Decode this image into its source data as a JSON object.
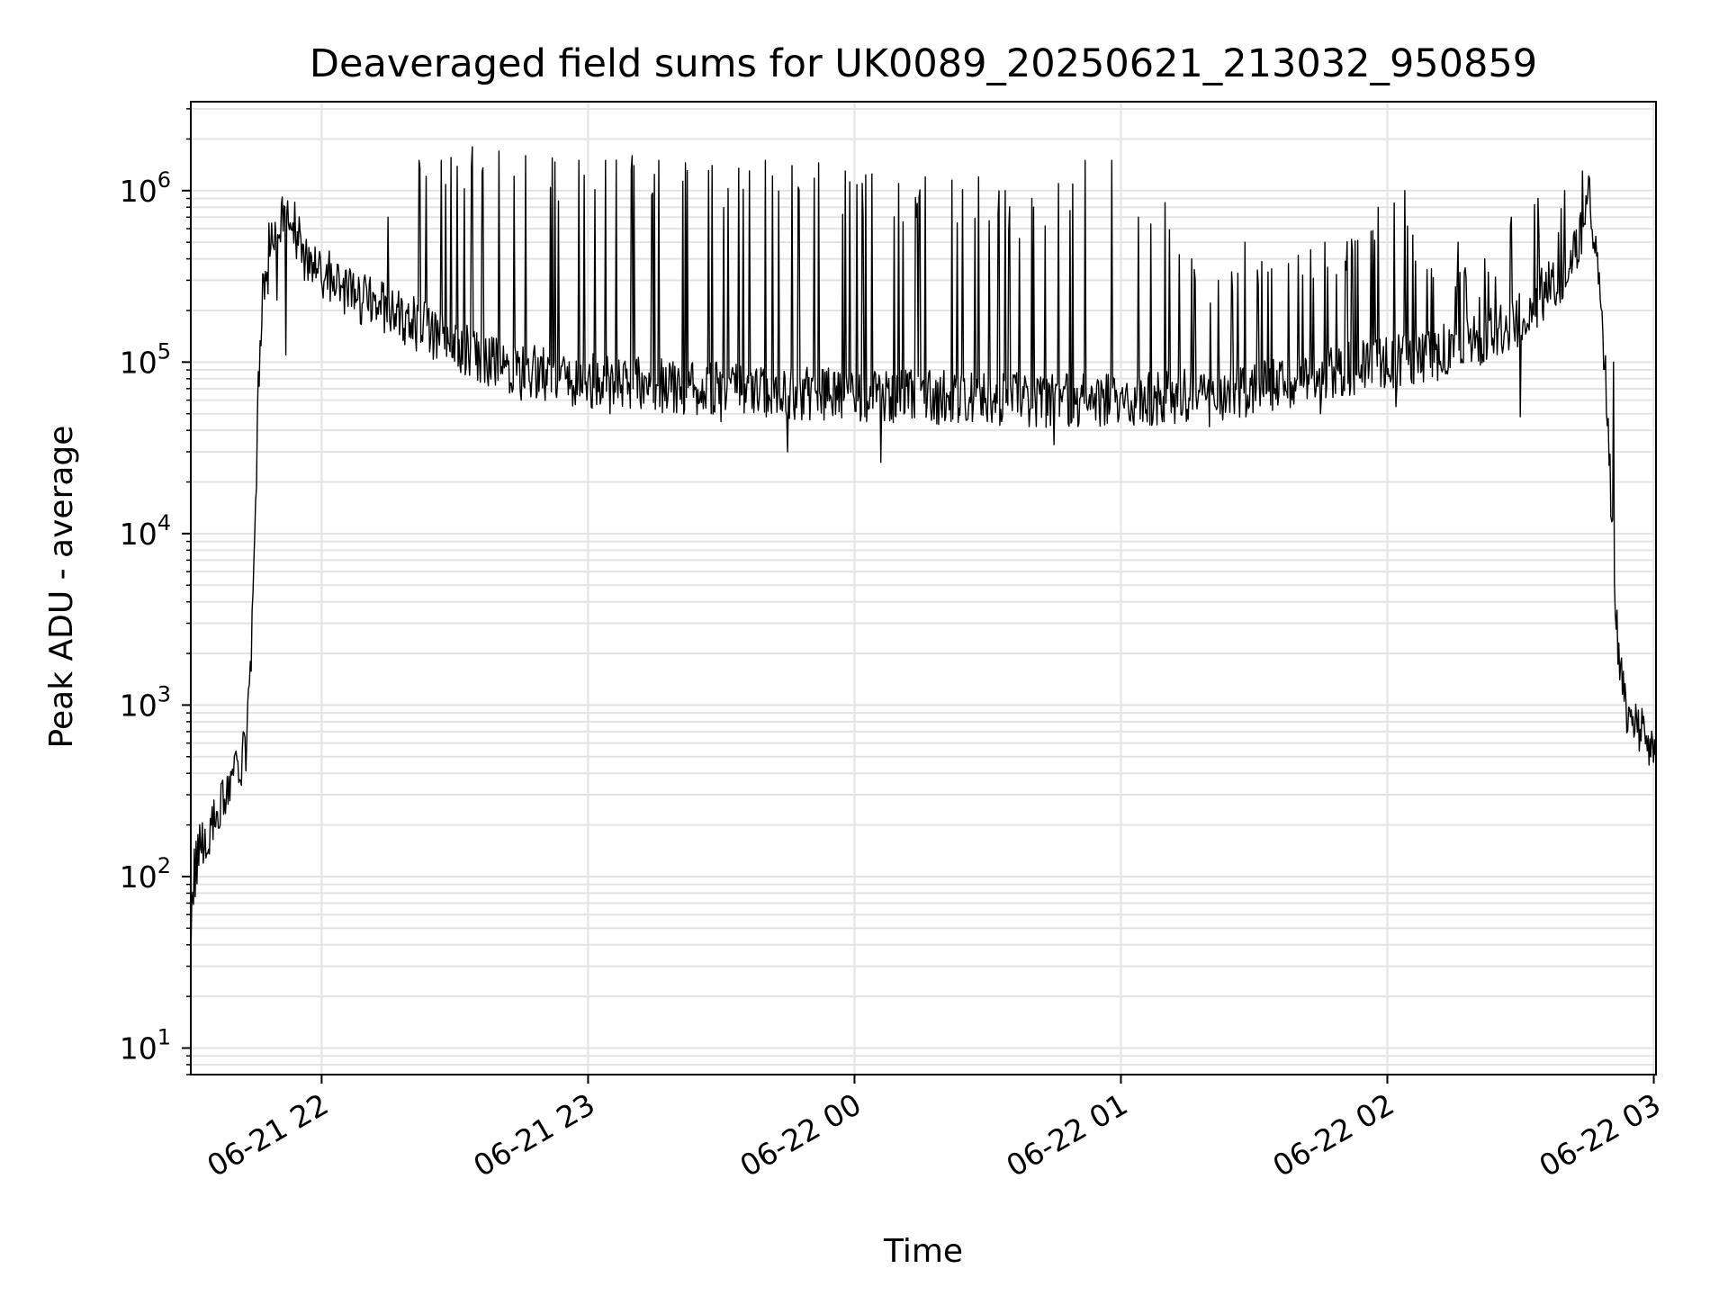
{
  "chart_data": {
    "type": "line",
    "title": "Deaveraged field sums for UK0089_20250621_213032_950859",
    "xlabel": "Time",
    "ylabel": "Peak ADU - average",
    "yscale": "log",
    "ylim": [
      7,
      3300000
    ],
    "xlim": [
      "2025-06-21 21:30:32",
      "2025-06-22 03:00:30"
    ],
    "grid": true,
    "line_color": "#000000",
    "x_ticks": [
      {
        "label": "06-21 22",
        "value": "2025-06-21 22:00:00"
      },
      {
        "label": "06-21 23",
        "value": "2025-06-21 23:00:00"
      },
      {
        "label": "06-22 00",
        "value": "2025-06-22 00:00:00"
      },
      {
        "label": "06-22 01",
        "value": "2025-06-22 01:00:00"
      },
      {
        "label": "06-22 02",
        "value": "2025-06-22 02:00:00"
      },
      {
        "label": "06-22 03",
        "value": "2025-06-22 03:00:00"
      }
    ],
    "y_ticks": [
      {
        "base": "10",
        "exp": "1",
        "value": 10
      },
      {
        "base": "10",
        "exp": "2",
        "value": 100
      },
      {
        "base": "10",
        "exp": "3",
        "value": 1000
      },
      {
        "base": "10",
        "exp": "4",
        "value": 10000
      },
      {
        "base": "10",
        "exp": "5",
        "value": 100000
      },
      {
        "base": "10",
        "exp": "6",
        "value": 1000000
      }
    ],
    "series": [
      {
        "x": [
          "2025-06-21 21:30:32",
          "2025-06-21 21:31:00",
          "2025-06-21 21:32:00",
          "2025-06-21 21:33:00",
          "2025-06-21 21:35:00",
          "2025-06-21 21:37:00",
          "2025-06-21 21:39:00",
          "2025-06-21 21:40:00",
          "2025-06-21 21:40:30",
          "2025-06-21 21:41:00",
          "2025-06-21 21:42:00",
          "2025-06-21 21:43:00",
          "2025-06-21 21:44:00",
          "2025-06-21 21:45:00",
          "2025-06-21 21:46:00",
          "2025-06-21 21:47:00",
          "2025-06-21 21:48:00",
          "2025-06-21 21:50:00",
          "2025-06-21 21:52:00",
          "2025-06-21 21:53:00",
          "2025-06-21 21:54:00",
          "2025-06-21 21:55:00",
          "2025-06-21 21:55:30",
          "2025-06-21 21:56:00",
          "2025-06-21 21:58:00",
          "2025-06-21 22:00:00",
          "2025-06-21 22:05:00",
          "2025-06-21 22:10:00",
          "2025-06-21 22:15:00",
          "2025-06-21 22:20:00",
          "2025-06-21 22:25:00",
          "2025-06-21 22:30:00",
          "2025-06-21 22:35:00",
          "2025-06-21 22:40:00",
          "2025-06-21 22:45:00",
          "2025-06-21 22:50:00",
          "2025-06-21 22:55:00",
          "2025-06-21 23:00:00",
          "2025-06-21 23:10:00",
          "2025-06-21 23:20:00",
          "2025-06-21 23:30:00",
          "2025-06-21 23:40:00",
          "2025-06-21 23:50:00",
          "2025-06-22 00:00:00",
          "2025-06-22 00:10:00",
          "2025-06-22 00:20:00",
          "2025-06-22 00:30:00",
          "2025-06-22 00:40:00",
          "2025-06-22 00:50:00",
          "2025-06-22 01:00:00",
          "2025-06-22 01:10:00",
          "2025-06-22 01:20:00",
          "2025-06-22 01:30:00",
          "2025-06-22 01:40:00",
          "2025-06-22 01:50:00",
          "2025-06-22 02:00:00",
          "2025-06-22 02:10:00",
          "2025-06-22 02:20:00",
          "2025-06-22 02:30:00",
          "2025-06-22 02:35:00",
          "2025-06-22 02:40:00",
          "2025-06-22 02:42:00",
          "2025-06-22 02:44:00",
          "2025-06-22 02:45:00",
          "2025-06-22 02:46:00",
          "2025-06-22 02:47:00",
          "2025-06-22 02:48:00",
          "2025-06-22 02:49:00",
          "2025-06-22 02:50:00",
          "2025-06-22 02:51:00",
          "2025-06-22 02:52:00",
          "2025-06-22 02:53:00",
          "2025-06-22 02:55:00",
          "2025-06-22 02:58:00",
          "2025-06-22 03:00:30"
        ],
        "y": [
          35,
          90,
          130,
          160,
          200,
          260,
          320,
          420,
          500,
          380,
          450,
          600,
          1500,
          12000,
          110000,
          300000,
          450000,
          600000,
          680000,
          700000,
          620000,
          500000,
          480000,
          420000,
          390000,
          330000,
          270000,
          230000,
          200000,
          170000,
          150000,
          130000,
          110000,
          100000,
          90000,
          85000,
          80000,
          78000,
          75000,
          72000,
          70000,
          68000,
          66000,
          64000,
          63000,
          62000,
          61000,
          60000,
          59000,
          60000,
          62000,
          65000,
          70000,
          80000,
          90000,
          100000,
          110000,
          130000,
          180000,
          250000,
          320000,
          420000,
          600000,
          900000,
          750000,
          500000,
          250000,
          90000,
          30000,
          6000,
          2000,
          1200,
          800,
          650,
          500
        ]
      },
      {
        "x": [
          "2025-06-21 21:50:00",
          "2025-06-21 21:59:00",
          "2025-06-21 22:15:00",
          "2025-06-21 22:22:00",
          "2025-06-21 22:27:00",
          "2025-06-21 22:34:00",
          "2025-06-21 22:40:00",
          "2025-06-21 22:46:00",
          "2025-06-21 22:52:00",
          "2025-06-21 22:58:00",
          "2025-06-21 23:04:00",
          "2025-06-21 23:10:00",
          "2025-06-21 23:16:00",
          "2025-06-21 23:22:00",
          "2025-06-21 23:28:00",
          "2025-06-21 23:34:00",
          "2025-06-21 23:40:00",
          "2025-06-21 23:46:00",
          "2025-06-21 23:52:00",
          "2025-06-21 23:58:00",
          "2025-06-22 00:04:00",
          "2025-06-22 00:10:00",
          "2025-06-22 00:16:00",
          "2025-06-22 00:22:00",
          "2025-06-22 00:28:00",
          "2025-06-22 00:34:00",
          "2025-06-22 00:40:00",
          "2025-06-22 00:46:00",
          "2025-06-22 00:52:00",
          "2025-06-22 00:58:00",
          "2025-06-22 01:04:00",
          "2025-06-22 01:10:00",
          "2025-06-22 01:16:00",
          "2025-06-22 01:22:00",
          "2025-06-22 01:28:00",
          "2025-06-22 01:34:00",
          "2025-06-22 01:40:00",
          "2025-06-22 01:46:00",
          "2025-06-22 01:52:00",
          "2025-06-22 01:58:00",
          "2025-06-22 02:04:00",
          "2025-06-22 02:10:00",
          "2025-06-22 02:16:00",
          "2025-06-22 02:22:00",
          "2025-06-22 02:28:00",
          "2025-06-22 02:34:00",
          "2025-06-22 02:40:00",
          "2025-06-22 02:44:00"
        ],
        "y": [
          230000,
          350000,
          700000,
          1500000,
          1500000,
          1800000,
          1700000,
          1600000,
          1550000,
          1500000,
          1500000,
          1600000,
          1500000,
          1450000,
          1400000,
          1350000,
          1500000,
          1400000,
          1450000,
          1300000,
          1250000,
          1100000,
          1200000,
          1150000,
          1200000,
          1000000,
          900000,
          1100000,
          1500000,
          1500000,
          700000,
          850000,
          400000,
          300000,
          500000,
          350000,
          420000,
          500000,
          520000,
          800000,
          1000000,
          350000,
          500000,
          400000,
          700000,
          900000,
          1000000,
          1300000
        ]
      },
      {
        "x": [
          "2025-06-21 21:48:00",
          "2025-06-21 21:52:00",
          "2025-06-21 21:57:00",
          "2025-06-21 22:20:00",
          "2025-06-21 22:45:00",
          "2025-06-21 23:05:00",
          "2025-06-21 23:30:00",
          "2025-06-21 23:45:00",
          "2025-06-22 00:06:00",
          "2025-06-22 00:30:00",
          "2025-06-22 00:45:00",
          "2025-06-22 01:20:00",
          "2025-06-22 01:45:00",
          "2025-06-22 02:02:00",
          "2025-06-22 02:30:00",
          "2025-06-22 02:50:00",
          "2025-06-22 02:51:00"
        ],
        "y": [
          250000,
          110000,
          300000,
          170000,
          60000,
          50000,
          45000,
          30000,
          26000,
          45000,
          33000,
          42000,
          50000,
          55000,
          48000,
          25000,
          100000
        ]
      }
    ]
  }
}
